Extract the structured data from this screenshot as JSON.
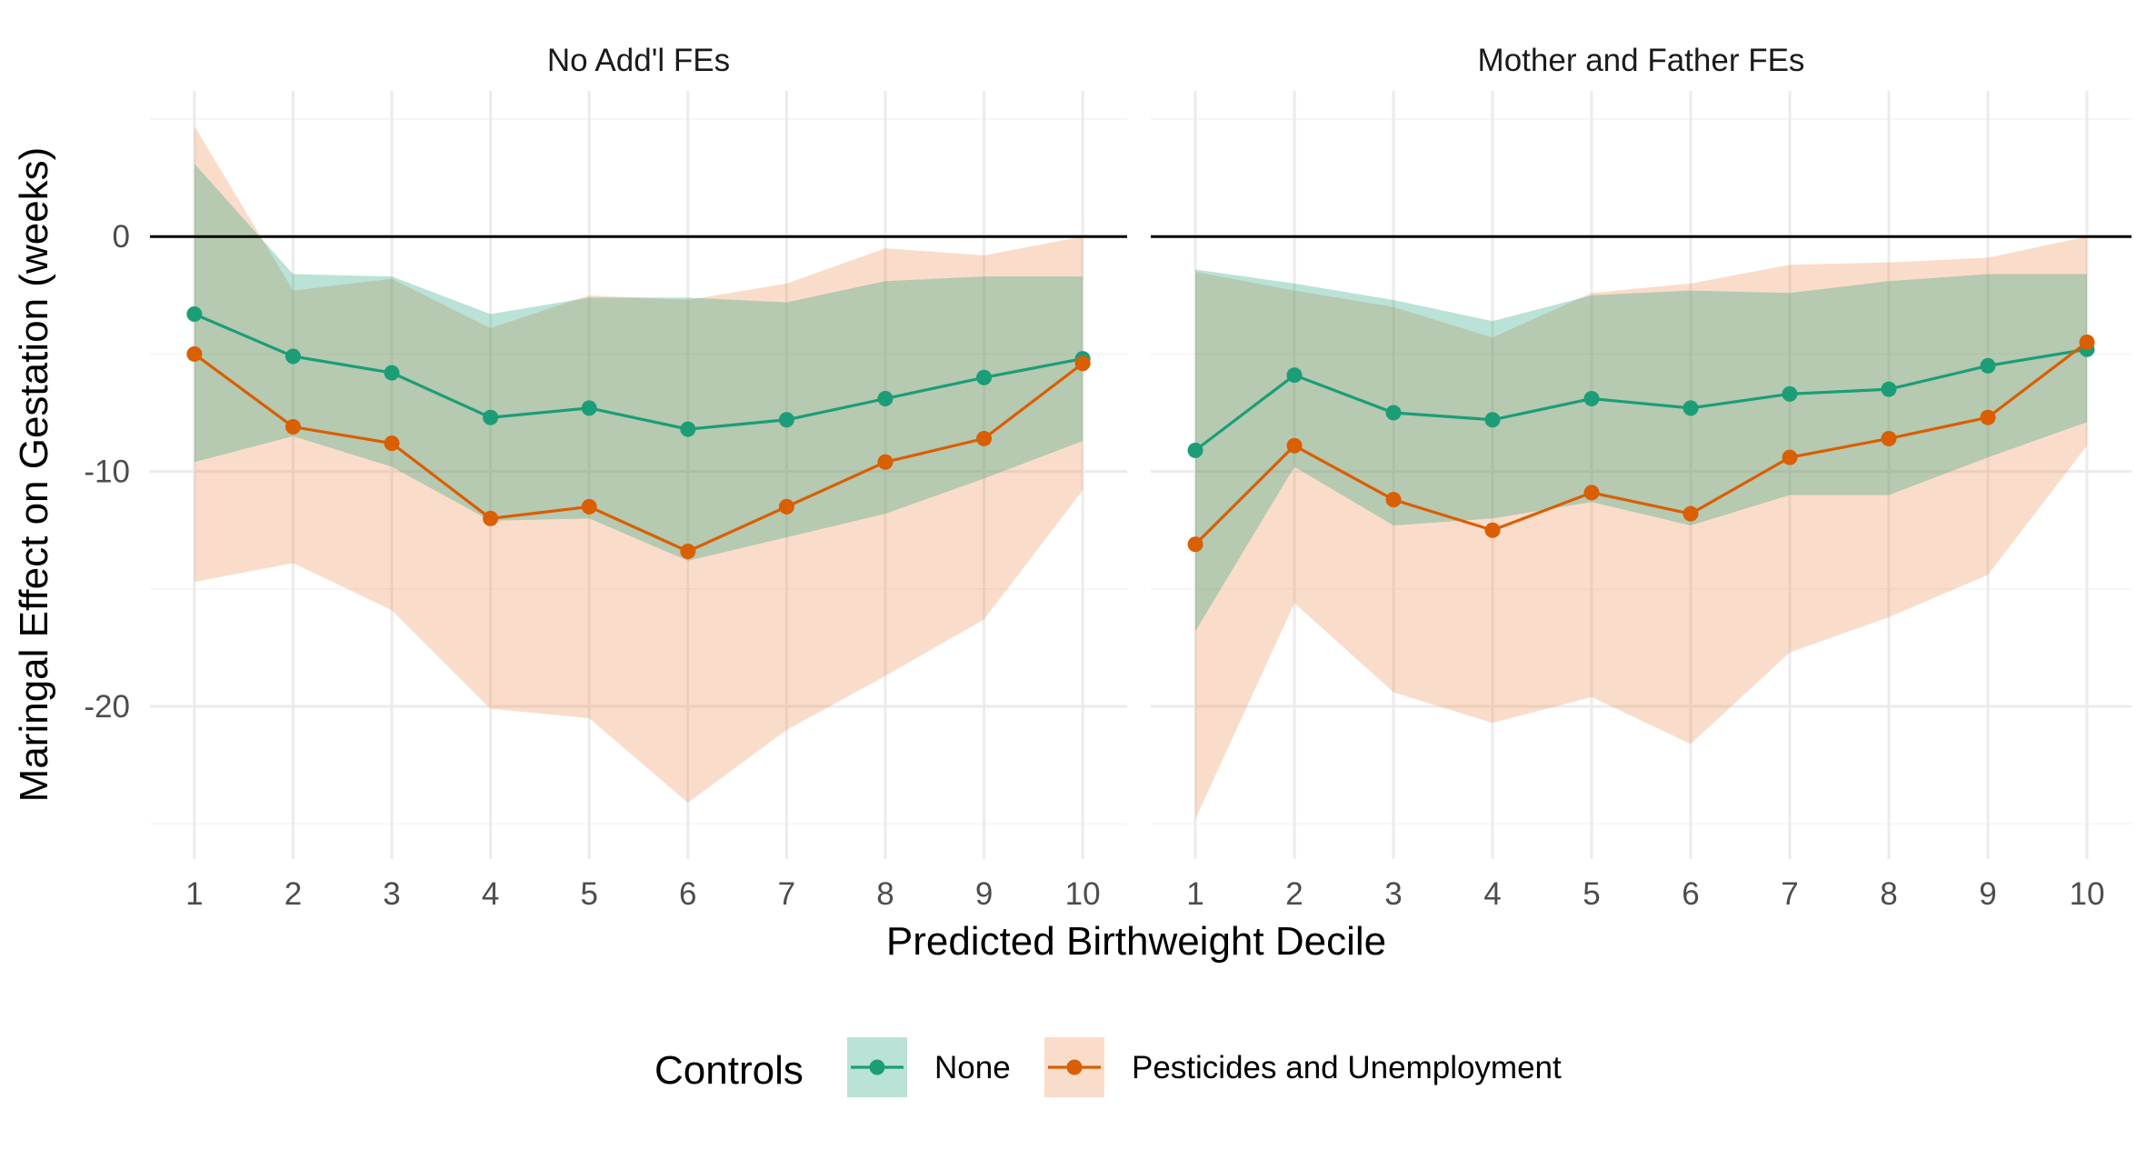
{
  "chart_data": {
    "type": "line",
    "ylabel": "Maringal Effect on Gestation (weeks)",
    "xlabel": "Predicted Birthweight Decile",
    "x": [
      1,
      2,
      3,
      4,
      5,
      6,
      7,
      8,
      9,
      10
    ],
    "x_tick_labels": [
      "1",
      "2",
      "3",
      "4",
      "5",
      "6",
      "7",
      "8",
      "9",
      "10"
    ],
    "xlim": [
      0.55,
      10.45
    ],
    "ylim": [
      -26.5,
      6.2
    ],
    "y_ticks": [
      0,
      -10,
      -20
    ],
    "y_tick_labels": [
      "0",
      "-10",
      "-20"
    ],
    "grid": true,
    "reference_line_y": 0,
    "legend": {
      "title": "Controls",
      "placement": "bottom",
      "entries": [
        "None",
        "Pesticides and Unemployment"
      ]
    },
    "colors": {
      "None": "#1b9e77",
      "Pesticides and Unemployment": "#d95f02"
    },
    "panels": [
      {
        "title": "No Add'l FEs",
        "series": [
          {
            "name": "None",
            "values": [
              -3.3,
              -5.1,
              -5.8,
              -7.7,
              -7.3,
              -8.2,
              -7.8,
              -6.9,
              -6.0,
              -5.2
            ],
            "lower": [
              -9.6,
              -8.5,
              -9.8,
              -12.1,
              -12.0,
              -13.8,
              -12.8,
              -11.8,
              -10.3,
              -8.7
            ],
            "upper": [
              3.1,
              -1.6,
              -1.7,
              -3.3,
              -2.6,
              -2.6,
              -2.8,
              -1.9,
              -1.7,
              -1.7
            ]
          },
          {
            "name": "Pesticides and Unemployment",
            "values": [
              -5.0,
              -8.1,
              -8.8,
              -12.0,
              -11.5,
              -13.4,
              -11.5,
              -9.6,
              -8.6,
              -5.4
            ],
            "lower": [
              -14.7,
              -13.9,
              -15.9,
              -20.1,
              -20.5,
              -24.1,
              -21.0,
              -18.7,
              -16.3,
              -10.8
            ],
            "upper": [
              4.7,
              -2.3,
              -1.8,
              -3.9,
              -2.5,
              -2.7,
              -2.0,
              -0.5,
              -0.8,
              0.0
            ]
          }
        ]
      },
      {
        "title": "Mother and Father FEs",
        "series": [
          {
            "name": "None",
            "values": [
              -9.1,
              -5.9,
              -7.5,
              -7.8,
              -6.9,
              -7.3,
              -6.7,
              -6.5,
              -5.5,
              -4.8
            ],
            "lower": [
              -16.8,
              -9.8,
              -12.3,
              -12.0,
              -11.3,
              -12.3,
              -11.0,
              -11.0,
              -9.4,
              -7.9
            ],
            "upper": [
              -1.4,
              -2.0,
              -2.7,
              -3.6,
              -2.5,
              -2.3,
              -2.4,
              -1.9,
              -1.6,
              -1.6
            ]
          },
          {
            "name": "Pesticides and Unemployment",
            "values": [
              -13.1,
              -8.9,
              -11.2,
              -12.5,
              -10.9,
              -11.8,
              -9.4,
              -8.6,
              -7.7,
              -4.5
            ],
            "lower": [
              -24.8,
              -15.6,
              -19.4,
              -20.7,
              -19.6,
              -21.6,
              -17.7,
              -16.2,
              -14.4,
              -8.9
            ],
            "upper": [
              -1.5,
              -2.3,
              -3.0,
              -4.3,
              -2.4,
              -2.0,
              -1.2,
              -1.1,
              -0.9,
              0.0
            ]
          }
        ]
      }
    ]
  }
}
